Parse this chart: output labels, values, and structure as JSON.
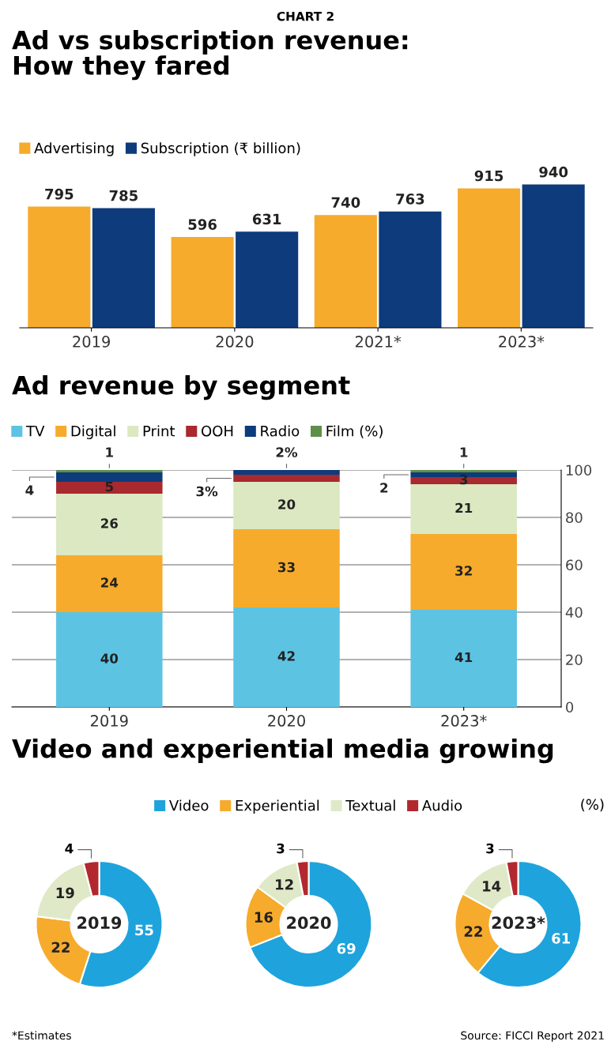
{
  "chart_data": [
    {
      "type": "bar",
      "title": "Ad vs subscription revenue:\nHow they fared",
      "annotations": [
        "CHART 2"
      ],
      "categories": [
        "2019",
        "2020",
        "2021*",
        "2023*"
      ],
      "series": [
        {
          "name": "Advertising",
          "color": "#f6ab2c",
          "values": [
            795,
            596,
            740,
            915
          ]
        },
        {
          "name": "Subscription (₹ billion)",
          "color": "#0d3b7c",
          "values": [
            785,
            631,
            763,
            940
          ]
        }
      ],
      "data_labels": true,
      "legend": "top left",
      "grid": false
    },
    {
      "type": "bar",
      "title": "Ad revenue by segment",
      "categories": [
        "2019",
        "2020",
        "2023*"
      ],
      "stacked": true,
      "series": [
        {
          "name": "TV",
          "color": "#5cc3e3",
          "values": [
            40,
            42,
            41
          ],
          "value_labels": [
            "40",
            "42",
            "41"
          ]
        },
        {
          "name": "Digital",
          "color": "#f6ab2c",
          "values": [
            24,
            33,
            32
          ],
          "value_labels": [
            "24",
            "33",
            "32"
          ]
        },
        {
          "name": "Print",
          "color": "#dbe8c2",
          "values": [
            26,
            20,
            21
          ],
          "value_labels": [
            "26",
            "20",
            "21"
          ]
        },
        {
          "name": "OOH",
          "color": "#a82a2e",
          "values": [
            5,
            3,
            3
          ],
          "value_labels": [
            "5",
            "3%",
            "3"
          ]
        },
        {
          "name": "Radio",
          "color": "#0d3b7c",
          "values": [
            4,
            2,
            2
          ],
          "value_labels": [
            "4",
            "2%",
            "2"
          ]
        },
        {
          "name": "Film (%)",
          "color": "#5e8f4a",
          "values": [
            1,
            0,
            1
          ],
          "value_labels": [
            "1",
            null,
            "1"
          ]
        }
      ],
      "ylim": [
        0,
        100
      ],
      "yticks": [
        0,
        20,
        40,
        60,
        80,
        100
      ],
      "grid": "y",
      "legend": "top left"
    },
    {
      "type": "donut",
      "title": "2019",
      "annotations": [
        "Video and experiential media growing",
        "(%)"
      ],
      "values": [
        55,
        22,
        19,
        4
      ],
      "colors": [
        "#1fa3dc",
        "#f6ab2c",
        "#dfe9c8",
        "#b3282e"
      ],
      "data_labels": true
    },
    {
      "type": "donut",
      "title": "2020",
      "categories": [
        "Video",
        "Experiential",
        "Textual",
        "Audio"
      ],
      "legend": "top",
      "values": [
        69,
        16,
        12,
        3
      ],
      "colors": [
        "#1fa3dc",
        "#f6ab2c",
        "#dfe9c8",
        "#b3282e"
      ],
      "data_labels": true
    },
    {
      "type": "donut",
      "title": "2023*",
      "annotations": [
        "*Estimates",
        "Source: FICCI Report 2021"
      ],
      "values": [
        61,
        22,
        14,
        3
      ],
      "colors": [
        "#1fa3dc",
        "#f6ab2c",
        "#dfe9c8",
        "#b3282e"
      ],
      "data_labels": true
    }
  ]
}
